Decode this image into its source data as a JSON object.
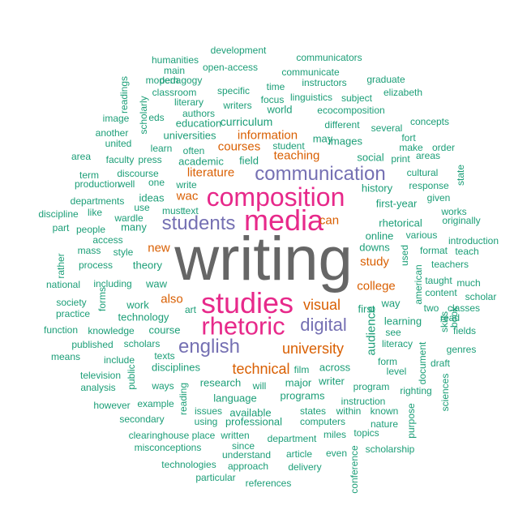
{
  "colors": {
    "dark_gray": "#666666",
    "magenta": "#e7298a",
    "purple": "#7570b3",
    "orange": "#d95f02",
    "teal": "#1b9e77"
  },
  "words": [
    {
      "text": "writing",
      "color": "dark_gray",
      "weight": 100
    },
    {
      "text": "media",
      "color": "magenta",
      "weight": 34
    },
    {
      "text": "composition",
      "color": "magenta",
      "weight": 34
    },
    {
      "text": "studies",
      "color": "magenta",
      "weight": 34
    },
    {
      "text": "rhetoric",
      "color": "magenta",
      "weight": 33
    },
    {
      "text": "communication",
      "color": "purple",
      "weight": 23
    },
    {
      "text": "students",
      "color": "purple",
      "weight": 23
    },
    {
      "text": "english",
      "color": "purple",
      "weight": 23
    },
    {
      "text": "digital",
      "color": "purple",
      "weight": 22
    },
    {
      "text": "university",
      "color": "orange",
      "weight": 16
    },
    {
      "text": "technical",
      "color": "orange",
      "weight": 16
    },
    {
      "text": "visual",
      "color": "orange",
      "weight": 16
    },
    {
      "text": "information",
      "color": "orange",
      "weight": 12
    },
    {
      "text": "courses",
      "color": "orange",
      "weight": 12
    },
    {
      "text": "teaching",
      "color": "orange",
      "weight": 12
    },
    {
      "text": "literature",
      "color": "orange",
      "weight": 12
    },
    {
      "text": "wac",
      "color": "orange",
      "weight": 12
    },
    {
      "text": "can",
      "color": "orange",
      "weight": 12
    },
    {
      "text": "new",
      "color": "orange",
      "weight": 12
    },
    {
      "text": "also",
      "color": "orange",
      "weight": 12
    },
    {
      "text": "study",
      "color": "orange",
      "weight": 12
    },
    {
      "text": "college",
      "color": "orange",
      "weight": 12
    },
    {
      "text": "audience",
      "color": "teal",
      "weight": 9
    },
    {
      "text": "curriculum",
      "color": "teal",
      "weight": 9
    },
    {
      "text": "universities",
      "color": "teal",
      "weight": 9
    },
    {
      "text": "academic",
      "color": "teal",
      "weight": 9
    },
    {
      "text": "field",
      "color": "teal",
      "weight": 9
    },
    {
      "text": "social",
      "color": "teal",
      "weight": 9
    },
    {
      "text": "rhetorical",
      "color": "teal",
      "weight": 9
    },
    {
      "text": "first-year",
      "color": "teal",
      "weight": 9
    },
    {
      "text": "online",
      "color": "teal",
      "weight": 9
    },
    {
      "text": "downs",
      "color": "teal",
      "weight": 9
    },
    {
      "text": "theory",
      "color": "teal",
      "weight": 9
    },
    {
      "text": "ideas",
      "color": "teal",
      "weight": 9
    },
    {
      "text": "many",
      "color": "teal",
      "weight": 9
    },
    {
      "text": "waw",
      "color": "teal",
      "weight": 9
    },
    {
      "text": "work",
      "color": "teal",
      "weight": 9
    },
    {
      "text": "technology",
      "color": "teal",
      "weight": 9
    },
    {
      "text": "course",
      "color": "teal",
      "weight": 9
    },
    {
      "text": "first",
      "color": "teal",
      "weight": 9
    },
    {
      "text": "way",
      "color": "teal",
      "weight": 9
    },
    {
      "text": "learning",
      "color": "teal",
      "weight": 9
    },
    {
      "text": "history",
      "color": "teal",
      "weight": 9
    },
    {
      "text": "may",
      "color": "teal",
      "weight": 9
    },
    {
      "text": "images",
      "color": "teal",
      "weight": 9
    },
    {
      "text": "disciplines",
      "color": "teal",
      "weight": 9
    },
    {
      "text": "across",
      "color": "teal",
      "weight": 9
    },
    {
      "text": "research",
      "color": "teal",
      "weight": 9
    },
    {
      "text": "major",
      "color": "teal",
      "weight": 9
    },
    {
      "text": "writer",
      "color": "teal",
      "weight": 9
    },
    {
      "text": "language",
      "color": "teal",
      "weight": 9
    },
    {
      "text": "programs",
      "color": "teal",
      "weight": 9
    },
    {
      "text": "available",
      "color": "teal",
      "weight": 9
    },
    {
      "text": "professional",
      "color": "teal",
      "weight": 9
    },
    {
      "text": "world",
      "color": "teal",
      "weight": 9
    },
    {
      "text": "education",
      "color": "teal",
      "weight": 9
    },
    {
      "text": "different",
      "color": "teal",
      "weight": 7
    },
    {
      "text": "development",
      "color": "teal",
      "weight": 6
    },
    {
      "text": "communicators",
      "color": "teal",
      "weight": 6
    },
    {
      "text": "humanities",
      "color": "teal",
      "weight": 6
    },
    {
      "text": "main",
      "color": "teal",
      "weight": 6
    },
    {
      "text": "open-access",
      "color": "teal",
      "weight": 6
    },
    {
      "text": "communicate",
      "color": "teal",
      "weight": 6
    },
    {
      "text": "readings",
      "color": "teal",
      "weight": 6
    },
    {
      "text": "modern",
      "color": "teal",
      "weight": 6
    },
    {
      "text": "pedagogy",
      "color": "teal",
      "weight": 6
    },
    {
      "text": "instructors",
      "color": "teal",
      "weight": 6
    },
    {
      "text": "graduate",
      "color": "teal",
      "weight": 6
    },
    {
      "text": "time",
      "color": "teal",
      "weight": 6
    },
    {
      "text": "classroom",
      "color": "teal",
      "weight": 6
    },
    {
      "text": "specific",
      "color": "teal",
      "weight": 6
    },
    {
      "text": "focus",
      "color": "teal",
      "weight": 6
    },
    {
      "text": "linguistics",
      "color": "teal",
      "weight": 6
    },
    {
      "text": "subject",
      "color": "teal",
      "weight": 6
    },
    {
      "text": "elizabeth",
      "color": "teal",
      "weight": 6
    },
    {
      "text": "scholarly",
      "color": "teal",
      "weight": 6
    },
    {
      "text": "literary",
      "color": "teal",
      "weight": 6
    },
    {
      "text": "writers",
      "color": "teal",
      "weight": 6
    },
    {
      "text": "ecocomposition",
      "color": "teal",
      "weight": 6
    },
    {
      "text": "image",
      "color": "teal",
      "weight": 6
    },
    {
      "text": "eds",
      "color": "teal",
      "weight": 6
    },
    {
      "text": "authors",
      "color": "teal",
      "weight": 6
    },
    {
      "text": "concepts",
      "color": "teal",
      "weight": 6
    },
    {
      "text": "another",
      "color": "teal",
      "weight": 6
    },
    {
      "text": "several",
      "color": "teal",
      "weight": 6
    },
    {
      "text": "united",
      "color": "teal",
      "weight": 6
    },
    {
      "text": "student",
      "color": "teal",
      "weight": 6
    },
    {
      "text": "fort",
      "color": "teal",
      "weight": 6
    },
    {
      "text": "learn",
      "color": "teal",
      "weight": 6
    },
    {
      "text": "often",
      "color": "teal",
      "weight": 6
    },
    {
      "text": "make",
      "color": "teal",
      "weight": 6
    },
    {
      "text": "order",
      "color": "teal",
      "weight": 6
    },
    {
      "text": "area",
      "color": "teal",
      "weight": 6
    },
    {
      "text": "faculty",
      "color": "teal",
      "weight": 6
    },
    {
      "text": "press",
      "color": "teal",
      "weight": 6
    },
    {
      "text": "print",
      "color": "teal",
      "weight": 6
    },
    {
      "text": "areas",
      "color": "teal",
      "weight": 6
    },
    {
      "text": "term",
      "color": "teal",
      "weight": 6
    },
    {
      "text": "discourse",
      "color": "teal",
      "weight": 6
    },
    {
      "text": "one",
      "color": "teal",
      "weight": 6
    },
    {
      "text": "cultural",
      "color": "teal",
      "weight": 6
    },
    {
      "text": "state",
      "color": "teal",
      "weight": 6
    },
    {
      "text": "production",
      "color": "teal",
      "weight": 6
    },
    {
      "text": "well",
      "color": "teal",
      "weight": 6
    },
    {
      "text": "write",
      "color": "teal",
      "weight": 6
    },
    {
      "text": "response",
      "color": "teal",
      "weight": 6
    },
    {
      "text": "departments",
      "color": "teal",
      "weight": 6
    },
    {
      "text": "given",
      "color": "teal",
      "weight": 6
    },
    {
      "text": "discipline",
      "color": "teal",
      "weight": 6
    },
    {
      "text": "like",
      "color": "teal",
      "weight": 6
    },
    {
      "text": "use",
      "color": "teal",
      "weight": 6
    },
    {
      "text": "works",
      "color": "teal",
      "weight": 6
    },
    {
      "text": "wardle",
      "color": "teal",
      "weight": 6
    },
    {
      "text": "originally",
      "color": "teal",
      "weight": 6
    },
    {
      "text": "part",
      "color": "teal",
      "weight": 6
    },
    {
      "text": "people",
      "color": "teal",
      "weight": 6
    },
    {
      "text": "various",
      "color": "teal",
      "weight": 6
    },
    {
      "text": "access",
      "color": "teal",
      "weight": 6
    },
    {
      "text": "introduction",
      "color": "teal",
      "weight": 6
    },
    {
      "text": "mass",
      "color": "teal",
      "weight": 6
    },
    {
      "text": "style",
      "color": "teal",
      "weight": 6
    },
    {
      "text": "format",
      "color": "teal",
      "weight": 6
    },
    {
      "text": "teach",
      "color": "teal",
      "weight": 6
    },
    {
      "text": "rather",
      "color": "teal",
      "weight": 6
    },
    {
      "text": "process",
      "color": "teal",
      "weight": 6
    },
    {
      "text": "used",
      "color": "teal",
      "weight": 6
    },
    {
      "text": "teachers",
      "color": "teal",
      "weight": 6
    },
    {
      "text": "american",
      "color": "teal",
      "weight": 6
    },
    {
      "text": "taught",
      "color": "teal",
      "weight": 6
    },
    {
      "text": "much",
      "color": "teal",
      "weight": 6
    },
    {
      "text": "national",
      "color": "teal",
      "weight": 6
    },
    {
      "text": "including",
      "color": "teal",
      "weight": 6
    },
    {
      "text": "content",
      "color": "teal",
      "weight": 6
    },
    {
      "text": "scholar",
      "color": "teal",
      "weight": 6
    },
    {
      "text": "forms",
      "color": "teal",
      "weight": 6
    },
    {
      "text": "society",
      "color": "teal",
      "weight": 6
    },
    {
      "text": "art",
      "color": "teal",
      "weight": 6
    },
    {
      "text": "two",
      "color": "teal",
      "weight": 6
    },
    {
      "text": "classes",
      "color": "teal",
      "weight": 6
    },
    {
      "text": "practice",
      "color": "teal",
      "weight": 6
    },
    {
      "text": "skills",
      "color": "teal",
      "weight": 6
    },
    {
      "text": "read",
      "color": "teal",
      "weight": 6
    },
    {
      "text": "function",
      "color": "teal",
      "weight": 6
    },
    {
      "text": "knowledge",
      "color": "teal",
      "weight": 6
    },
    {
      "text": "book",
      "color": "teal",
      "weight": 6
    },
    {
      "text": "fields",
      "color": "teal",
      "weight": 6
    },
    {
      "text": "published",
      "color": "teal",
      "weight": 6
    },
    {
      "text": "scholars",
      "color": "teal",
      "weight": 6
    },
    {
      "text": "see",
      "color": "teal",
      "weight": 6
    },
    {
      "text": "means",
      "color": "teal",
      "weight": 6
    },
    {
      "text": "include",
      "color": "teal",
      "weight": 6
    },
    {
      "text": "texts",
      "color": "teal",
      "weight": 6
    },
    {
      "text": "form",
      "color": "teal",
      "weight": 6
    },
    {
      "text": "draft",
      "color": "teal",
      "weight": 6
    },
    {
      "text": "genres",
      "color": "teal",
      "weight": 6
    },
    {
      "text": "public",
      "color": "teal",
      "weight": 6
    },
    {
      "text": "literacy",
      "color": "teal",
      "weight": 6
    },
    {
      "text": "document",
      "color": "teal",
      "weight": 6
    },
    {
      "text": "television",
      "color": "teal",
      "weight": 6
    },
    {
      "text": "film",
      "color": "teal",
      "weight": 6
    },
    {
      "text": "level",
      "color": "teal",
      "weight": 6
    },
    {
      "text": "analysis",
      "color": "teal",
      "weight": 6
    },
    {
      "text": "ways",
      "color": "teal",
      "weight": 6
    },
    {
      "text": "will",
      "color": "teal",
      "weight": 6
    },
    {
      "text": "program",
      "color": "teal",
      "weight": 6
    },
    {
      "text": "righting",
      "color": "teal",
      "weight": 6
    },
    {
      "text": "however",
      "color": "teal",
      "weight": 6
    },
    {
      "text": "example",
      "color": "teal",
      "weight": 6
    },
    {
      "text": "reading",
      "color": "teal",
      "weight": 6
    },
    {
      "text": "instruction",
      "color": "teal",
      "weight": 6
    },
    {
      "text": "sciences",
      "color": "teal",
      "weight": 6
    },
    {
      "text": "issues",
      "color": "teal",
      "weight": 6
    },
    {
      "text": "states",
      "color": "teal",
      "weight": 6
    },
    {
      "text": "within",
      "color": "teal",
      "weight": 6
    },
    {
      "text": "known",
      "color": "teal",
      "weight": 6
    },
    {
      "text": "secondary",
      "color": "teal",
      "weight": 6
    },
    {
      "text": "using",
      "color": "teal",
      "weight": 6
    },
    {
      "text": "computers",
      "color": "teal",
      "weight": 6
    },
    {
      "text": "nature",
      "color": "teal",
      "weight": 6
    },
    {
      "text": "purpose",
      "color": "teal",
      "weight": 6
    },
    {
      "text": "topics",
      "color": "teal",
      "weight": 6
    },
    {
      "text": "clearinghouse",
      "color": "teal",
      "weight": 6
    },
    {
      "text": "place",
      "color": "teal",
      "weight": 6
    },
    {
      "text": "written",
      "color": "teal",
      "weight": 6
    },
    {
      "text": "department",
      "color": "teal",
      "weight": 6
    },
    {
      "text": "miles",
      "color": "teal",
      "weight": 6
    },
    {
      "text": "scholarship",
      "color": "teal",
      "weight": 6
    },
    {
      "text": "misconceptions",
      "color": "teal",
      "weight": 6
    },
    {
      "text": "since",
      "color": "teal",
      "weight": 6
    },
    {
      "text": "understand",
      "color": "teal",
      "weight": 6
    },
    {
      "text": "article",
      "color": "teal",
      "weight": 6
    },
    {
      "text": "even",
      "color": "teal",
      "weight": 6
    },
    {
      "text": "technologies",
      "color": "teal",
      "weight": 6
    },
    {
      "text": "approach",
      "color": "teal",
      "weight": 6
    },
    {
      "text": "delivery",
      "color": "teal",
      "weight": 6
    },
    {
      "text": "conference",
      "color": "teal",
      "weight": 6
    },
    {
      "text": "particular",
      "color": "teal",
      "weight": 6
    },
    {
      "text": "references",
      "color": "teal",
      "weight": 6
    },
    {
      "text": "must",
      "color": "teal",
      "weight": 6
    },
    {
      "text": "text",
      "color": "teal",
      "weight": 6
    }
  ]
}
